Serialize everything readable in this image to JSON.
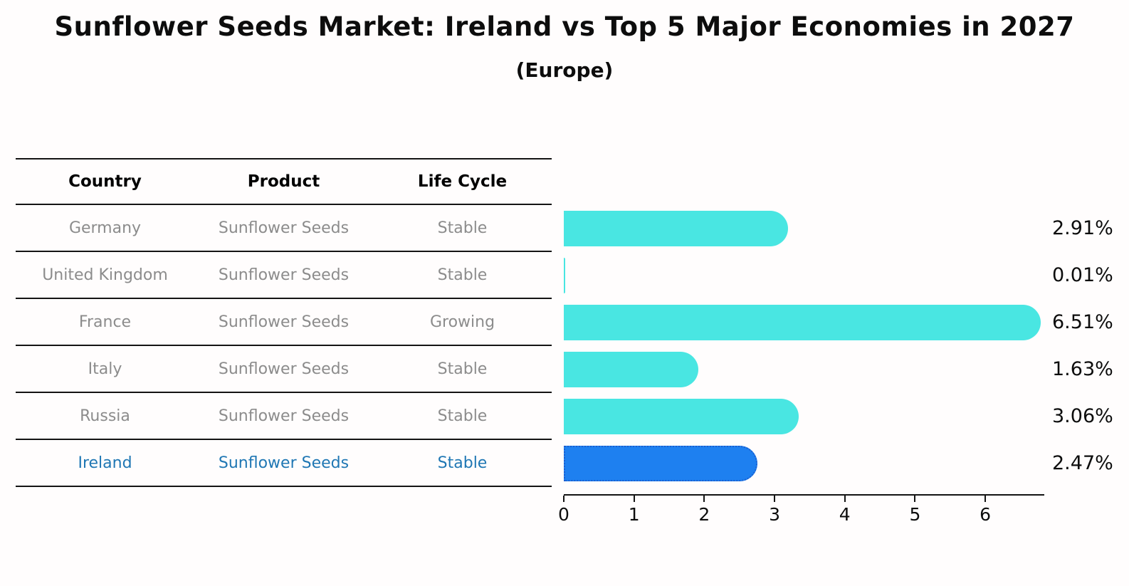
{
  "chart_data": {
    "type": "bar",
    "orientation": "horizontal",
    "title": "Sunflower Seeds Market: Ireland vs Top 5 Major Economies in 2027",
    "subtitle": "(Europe)",
    "categories": [
      "Germany",
      "United Kingdom",
      "France",
      "Italy",
      "Russia",
      "Ireland"
    ],
    "values": [
      2.91,
      0.01,
      6.51,
      1.63,
      3.06,
      2.47
    ],
    "value_labels": [
      "2.91%",
      "0.01%",
      "6.51%",
      "1.63%",
      "3.06%",
      "2.47%"
    ],
    "highlight_index": 5,
    "xticks": [
      "0",
      "1",
      "2",
      "3",
      "4",
      "5",
      "6"
    ],
    "xlim": [
      0,
      6.84
    ],
    "xlabel": "",
    "ylabel": "",
    "legend": "none",
    "grid": false
  },
  "table": {
    "headers": [
      "Country",
      "Product",
      "Life Cycle"
    ],
    "rows": [
      {
        "country": "Germany",
        "product": "Sunflower Seeds",
        "life_cycle": "Stable",
        "highlight": false
      },
      {
        "country": "United Kingdom",
        "product": "Sunflower Seeds",
        "life_cycle": "Stable",
        "highlight": false
      },
      {
        "country": "France",
        "product": "Sunflower Seeds",
        "life_cycle": "Growing",
        "highlight": false
      },
      {
        "country": "Italy",
        "product": "Sunflower Seeds",
        "life_cycle": "Stable",
        "highlight": false
      },
      {
        "country": "Russia",
        "product": "Sunflower Seeds",
        "life_cycle": "Stable",
        "highlight": false
      },
      {
        "country": "Ireland",
        "product": "Sunflower Seeds",
        "life_cycle": "Stable",
        "highlight": true
      }
    ]
  },
  "colors": {
    "bar": "#49e6e2",
    "highlight_bar": "#1e80f0",
    "highlight_border": "#1b5fd0",
    "highlight_text": "#1f77b4",
    "row_text": "#8c8c8c",
    "header_text": "#000000",
    "axis": "#141414"
  }
}
